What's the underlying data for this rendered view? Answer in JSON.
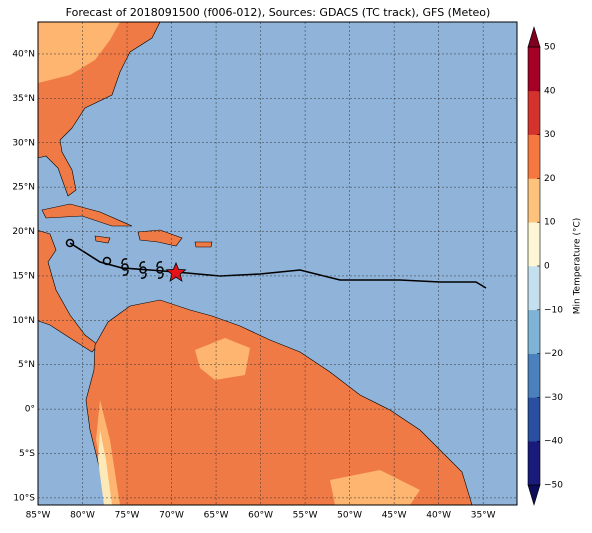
{
  "title": "Forecast of 2018091500 (f006-012), Sources: GDACS (TC track), GFS (Meteo)",
  "map": {
    "xlim": [
      -85,
      -31.2
    ],
    "ylim": [
      -10.8,
      43.6
    ],
    "xticks": [
      {
        "value": -85,
        "label": "85°W"
      },
      {
        "value": -80,
        "label": "80°W"
      },
      {
        "value": -75,
        "label": "75°W"
      },
      {
        "value": -70,
        "label": "70°W"
      },
      {
        "value": -65,
        "label": "65°W"
      },
      {
        "value": -60,
        "label": "60°W"
      },
      {
        "value": -55,
        "label": "55°W"
      },
      {
        "value": -50,
        "label": "50°W"
      },
      {
        "value": -45,
        "label": "45°W"
      },
      {
        "value": -40,
        "label": "40°W"
      },
      {
        "value": -35,
        "label": "35°W"
      }
    ],
    "yticks": [
      {
        "value": -10,
        "label": "10°S"
      },
      {
        "value": -5,
        "label": "5°S"
      },
      {
        "value": 0,
        "label": "0°"
      },
      {
        "value": 5,
        "label": "5°N"
      },
      {
        "value": 10,
        "label": "10°N"
      },
      {
        "value": 15,
        "label": "15°N"
      },
      {
        "value": 20,
        "label": "20°N"
      },
      {
        "value": 25,
        "label": "25°N"
      },
      {
        "value": 30,
        "label": "30°N"
      },
      {
        "value": 35,
        "label": "35°N"
      },
      {
        "value": 40,
        "label": "40°N"
      }
    ]
  },
  "colorbar": {
    "label": "Min Temperature (°C)",
    "lim": [
      -50,
      50
    ],
    "ticks": [
      {
        "value": -50,
        "label": "−50"
      },
      {
        "value": -40,
        "label": "−40"
      },
      {
        "value": -30,
        "label": "−30"
      },
      {
        "value": -20,
        "label": "−20"
      },
      {
        "value": -10,
        "label": "−10"
      },
      0,
      10,
      20,
      30,
      40,
      50
    ],
    "colors": [
      "#1a1a7a",
      "#2b4fa0",
      "#4a80bb",
      "#7eb3d6",
      "#c4e0ee",
      "#fdf6d4",
      "#fdc27c",
      "#f4783f",
      "#d4322c",
      "#a50026"
    ],
    "under": "#0c0c58",
    "over": "#800020"
  }
}
